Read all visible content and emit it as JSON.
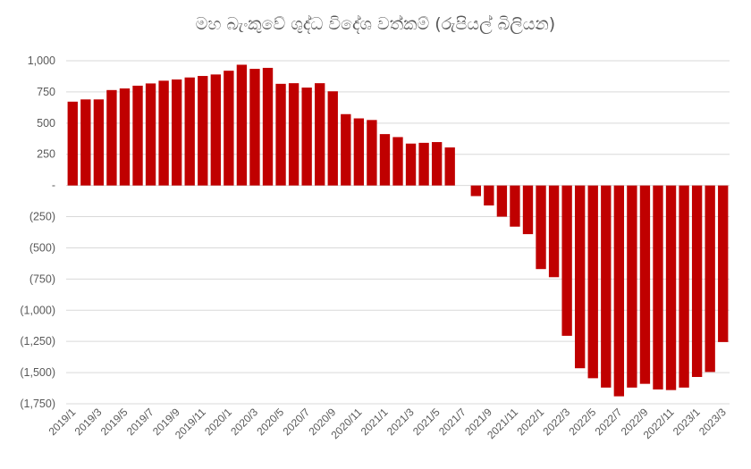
{
  "chart_data": {
    "type": "bar",
    "title": "මහ බැංකුවේ ශුද්ධ විදේශ වත්කම් (රුපියල් බිලියන)",
    "xlabel": "",
    "ylabel": "",
    "ylim": [
      -1750,
      1000
    ],
    "yticks": [
      1000,
      750,
      500,
      250,
      0,
      -250,
      -500,
      -750,
      -1000,
      -1250,
      -1500,
      -1750
    ],
    "ytick_labels": [
      "1,000",
      "750",
      "500",
      "250",
      "-",
      "(250)",
      "(500)",
      "(750)",
      "(1,000)",
      "(1,250)",
      "(1,500)",
      "(1,750)"
    ],
    "xtick_labels": [
      "2019/1",
      "2019/3",
      "2019/5",
      "2019/7",
      "2019/9",
      "2019/11",
      "2020/1",
      "2020/3",
      "2020/5",
      "2020/7",
      "2020/9",
      "2020/11",
      "2021/1",
      "2021/3",
      "2021/5",
      "2021/7",
      "2021/9",
      "2021/11",
      "2022/1",
      "2022/3",
      "2022/5",
      "2022/7",
      "2022/9",
      "2022/11",
      "2023/1",
      "2023/3"
    ],
    "categories": [
      "2019/1",
      "2019/2",
      "2019/3",
      "2019/4",
      "2019/5",
      "2019/6",
      "2019/7",
      "2019/8",
      "2019/9",
      "2019/10",
      "2019/11",
      "2019/12",
      "2020/1",
      "2020/2",
      "2020/3",
      "2020/4",
      "2020/5",
      "2020/6",
      "2020/7",
      "2020/8",
      "2020/9",
      "2020/10",
      "2020/11",
      "2020/12",
      "2021/1",
      "2021/2",
      "2021/3",
      "2021/4",
      "2021/5",
      "2021/6",
      "2021/7",
      "2021/8",
      "2021/9",
      "2021/10",
      "2021/11",
      "2021/12",
      "2022/1",
      "2022/2",
      "2022/3",
      "2022/4",
      "2022/5",
      "2022/6",
      "2022/7",
      "2022/8",
      "2022/9",
      "2022/10",
      "2022/11",
      "2022/12",
      "2023/1",
      "2023/2",
      "2023/3"
    ],
    "values": [
      672,
      690,
      690,
      765,
      778,
      800,
      818,
      840,
      850,
      866,
      878,
      890,
      920,
      968,
      935,
      943,
      815,
      820,
      785,
      820,
      755,
      572,
      538,
      525,
      412,
      388,
      336,
      342,
      348,
      305,
      0,
      -85,
      -160,
      -250,
      -330,
      -390,
      -670,
      -735,
      -1205,
      -1465,
      -1545,
      -1620,
      -1690,
      -1620,
      -1590,
      -1635,
      -1640,
      -1620,
      -1535,
      -1495,
      -1255
    ],
    "color": "#c00000",
    "grid": true
  }
}
